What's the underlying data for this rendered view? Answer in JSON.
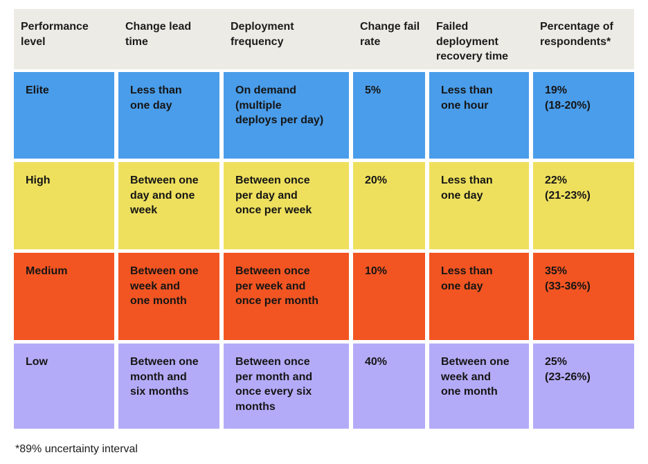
{
  "chart_data": {
    "type": "table",
    "columns": [
      "Performance\nlevel",
      "Change lead\ntime",
      "Deployment\nfrequency",
      "Change fail\nrate",
      "Failed\ndeployment\nrecovery time",
      "Percentage of\nrespondents*"
    ],
    "rows": [
      {
        "level": "Elite",
        "change_lead_time": "Less than\none day",
        "deployment_frequency": "On demand\n(multiple\ndeploys per day)",
        "change_fail_rate": "5%",
        "failed_deployment_recovery_time": "Less than\none hour",
        "percentage_of_respondents": "19%\n(18-20%)",
        "color": "#4a9dea"
      },
      {
        "level": "High",
        "change_lead_time": "Between one\nday and one\nweek",
        "deployment_frequency": "Between once\nper day and\nonce per week",
        "change_fail_rate": "20%",
        "failed_deployment_recovery_time": "Less than\none day",
        "percentage_of_respondents": "22%\n(21-23%)",
        "color": "#eee05d"
      },
      {
        "level": "Medium",
        "change_lead_time": "Between one\nweek and\none month",
        "deployment_frequency": "Between once\nper week and\nonce per month",
        "change_fail_rate": "10%",
        "failed_deployment_recovery_time": "Less than\none day",
        "percentage_of_respondents": "35%\n(33-36%)",
        "color": "#f25522"
      },
      {
        "level": "Low",
        "change_lead_time": "Between one\nmonth and\nsix months",
        "deployment_frequency": "Between once\nper month and\nonce every six\nmonths",
        "change_fail_rate": "40%",
        "failed_deployment_recovery_time": "Between one\nweek and\none month",
        "percentage_of_respondents": "25%\n(23-26%)",
        "color": "#b4abf8"
      }
    ],
    "title": "",
    "layout": {
      "header_background": "#edebe5",
      "gap_color": "#ffffff",
      "text_color": "#1f1f1f"
    }
  },
  "footnote": "*89% uncertainty interval"
}
